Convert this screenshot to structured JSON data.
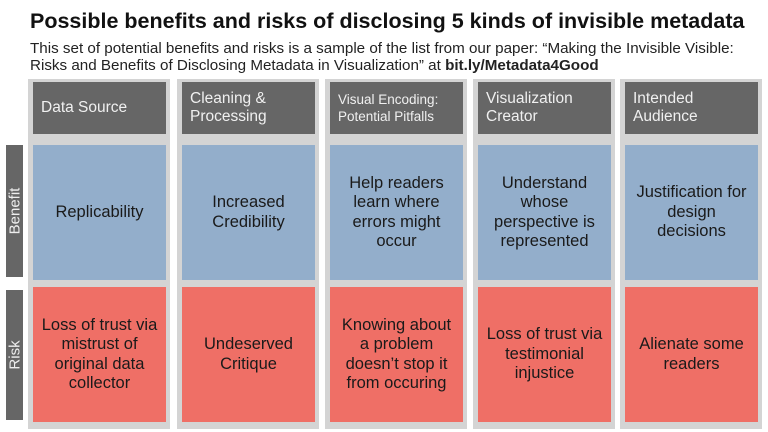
{
  "title": "Possible benefits and risks of disclosing 5 kinds of invisible metadata",
  "subtitle_line1": "This set of potential benefits and risks is a sample of the list from our paper: “Making the Invisible Visible:",
  "subtitle_line2": "Risks and Benefits of Disclosing Metadata in Visualization” at ",
  "subtitle_link": "bit.ly/Metadata4Good",
  "row_labels": {
    "benefit": "Benefit",
    "risk": "Risk"
  },
  "colors": {
    "header": "#666666",
    "benefit": "#93aecb",
    "risk": "#ef6f66",
    "column_bg": "#d4d4d4"
  },
  "columns": [
    {
      "header": "Data Source",
      "benefit": "Replicability",
      "risk": "Loss of trust via mistrust of original data collector"
    },
    {
      "header": "Cleaning & Processing",
      "benefit": "Increased Credibility",
      "risk": "Undeserved Critique"
    },
    {
      "header": "Visual Encoding: Potential Pitfalls",
      "benefit": "Help readers learn where errors might occur",
      "risk": "Knowing about a problem doesn’t stop it from occuring"
    },
    {
      "header": "Visualization Creator",
      "benefit": "Understand whose perspective is represented",
      "risk": "Loss of trust via testimonial injustice"
    },
    {
      "header": "Intended Audience",
      "benefit": "Justification for design decisions",
      "risk": "Alienate some readers"
    }
  ]
}
